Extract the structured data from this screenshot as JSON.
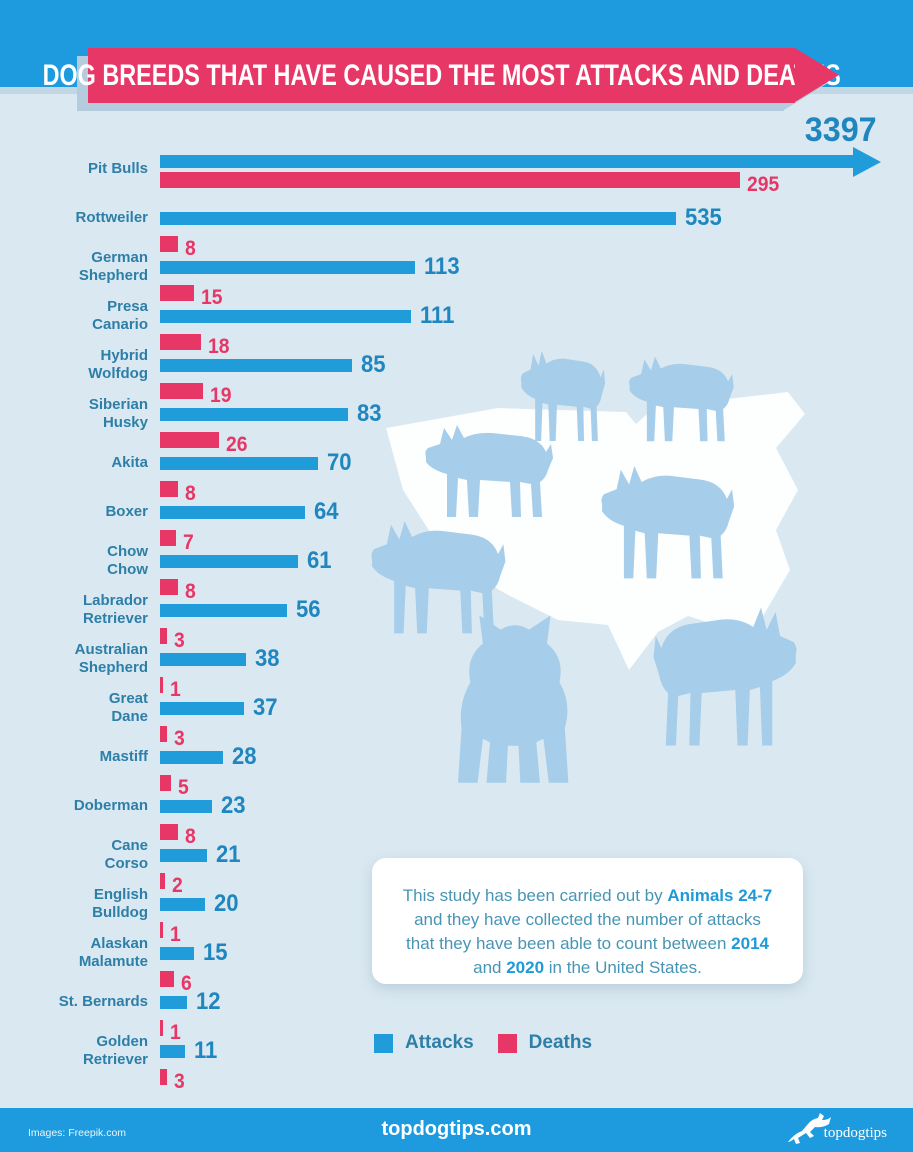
{
  "header": {
    "title": "DOG BREEDS THAT HAVE CAUSED THE MOST ATTACKS AND DEATHS"
  },
  "chart_data": {
    "type": "bar",
    "orientation": "horizontal",
    "title": "Dog breeds that have caused the most attacks and deaths",
    "categories": [
      "Pit Bulls",
      "Rottweiler",
      "German Shepherd",
      "Presa Canario",
      "Hybrid Wolfdog",
      "Siberian Husky",
      "Akita",
      "Boxer",
      "Chow Chow",
      "Labrador Retriever",
      "Australian Shepherd",
      "Great Dane",
      "Mastiff",
      "Doberman",
      "Cane Corso",
      "English Bulldog",
      "Alaskan Malamute",
      "St. Bernards",
      "Golden Retriever"
    ],
    "series": [
      {
        "name": "Attacks",
        "color": "#1F9CD9",
        "values": [
          3397,
          535,
          113,
          111,
          85,
          83,
          70,
          64,
          61,
          56,
          38,
          37,
          28,
          23,
          21,
          20,
          15,
          12,
          11
        ]
      },
      {
        "name": "Deaths",
        "color": "#E73766",
        "values": [
          295,
          8,
          15,
          18,
          19,
          26,
          8,
          7,
          8,
          3,
          1,
          3,
          5,
          8,
          2,
          1,
          6,
          1,
          3
        ]
      }
    ],
    "wrapped_label_indices": [
      2,
      3,
      4,
      5,
      8,
      9,
      10,
      11,
      14,
      15,
      16,
      18
    ],
    "off_scale_note": "Pit Bulls attacks bar exceeds the scale and is drawn as an arrow",
    "legend_position": "bottom",
    "grid": false
  },
  "info_box": {
    "segments": [
      {
        "text": "This study has been carried out by ",
        "bold": false
      },
      {
        "text": "Animals 24-7",
        "bold": true
      },
      {
        "text": " and they have collected the number of attacks that they have been able to count between ",
        "bold": false
      },
      {
        "text": "2014",
        "bold": true
      },
      {
        "text": " and ",
        "bold": false
      },
      {
        "text": "2020",
        "bold": true
      },
      {
        "text": " in the United States.",
        "bold": false
      }
    ]
  },
  "footer": {
    "images_credit": "Images: Freepik.com",
    "site": "topdogtips.com",
    "logo_text": "topdogtips"
  },
  "colors": {
    "attacks_bar": "#1F9CD9",
    "deaths_bar": "#E73766",
    "background": "#D9E8F1",
    "band_blue": "#1E9BDF",
    "banner_pink": "#E73766",
    "breed_label": "#2E7FA8",
    "attacks_value": "#1F86C0",
    "map": "#FFFFFF",
    "dog_silhouettes": "#A6CDE9"
  }
}
